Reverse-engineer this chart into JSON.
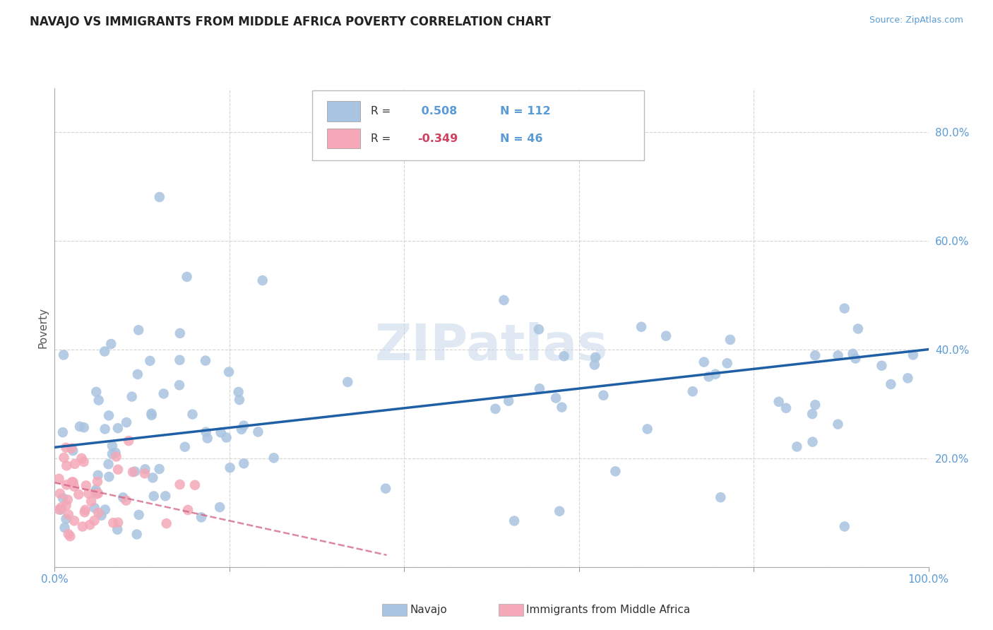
{
  "title": "NAVAJO VS IMMIGRANTS FROM MIDDLE AFRICA POVERTY CORRELATION CHART",
  "source": "Source: ZipAtlas.com",
  "ylabel": "Poverty",
  "xlim": [
    0.0,
    1.0
  ],
  "ylim": [
    0.0,
    0.88
  ],
  "background_color": "#ffffff",
  "grid_color": "#d0d0d0",
  "navajo_color": "#a8c4e0",
  "immigrants_color": "#f4a8b8",
  "navajo_line_color": "#1f5fa6",
  "immigrants_line_color": "#d06080",
  "tick_color": "#5b9bd5",
  "R_navajo": 0.508,
  "N_navajo": 112,
  "R_immigrants": -0.349,
  "N_immigrants": 46,
  "legend_label_navajo": "Navajo",
  "legend_label_immigrants": "Immigrants from Middle Africa",
  "watermark": "ZIPatlas"
}
